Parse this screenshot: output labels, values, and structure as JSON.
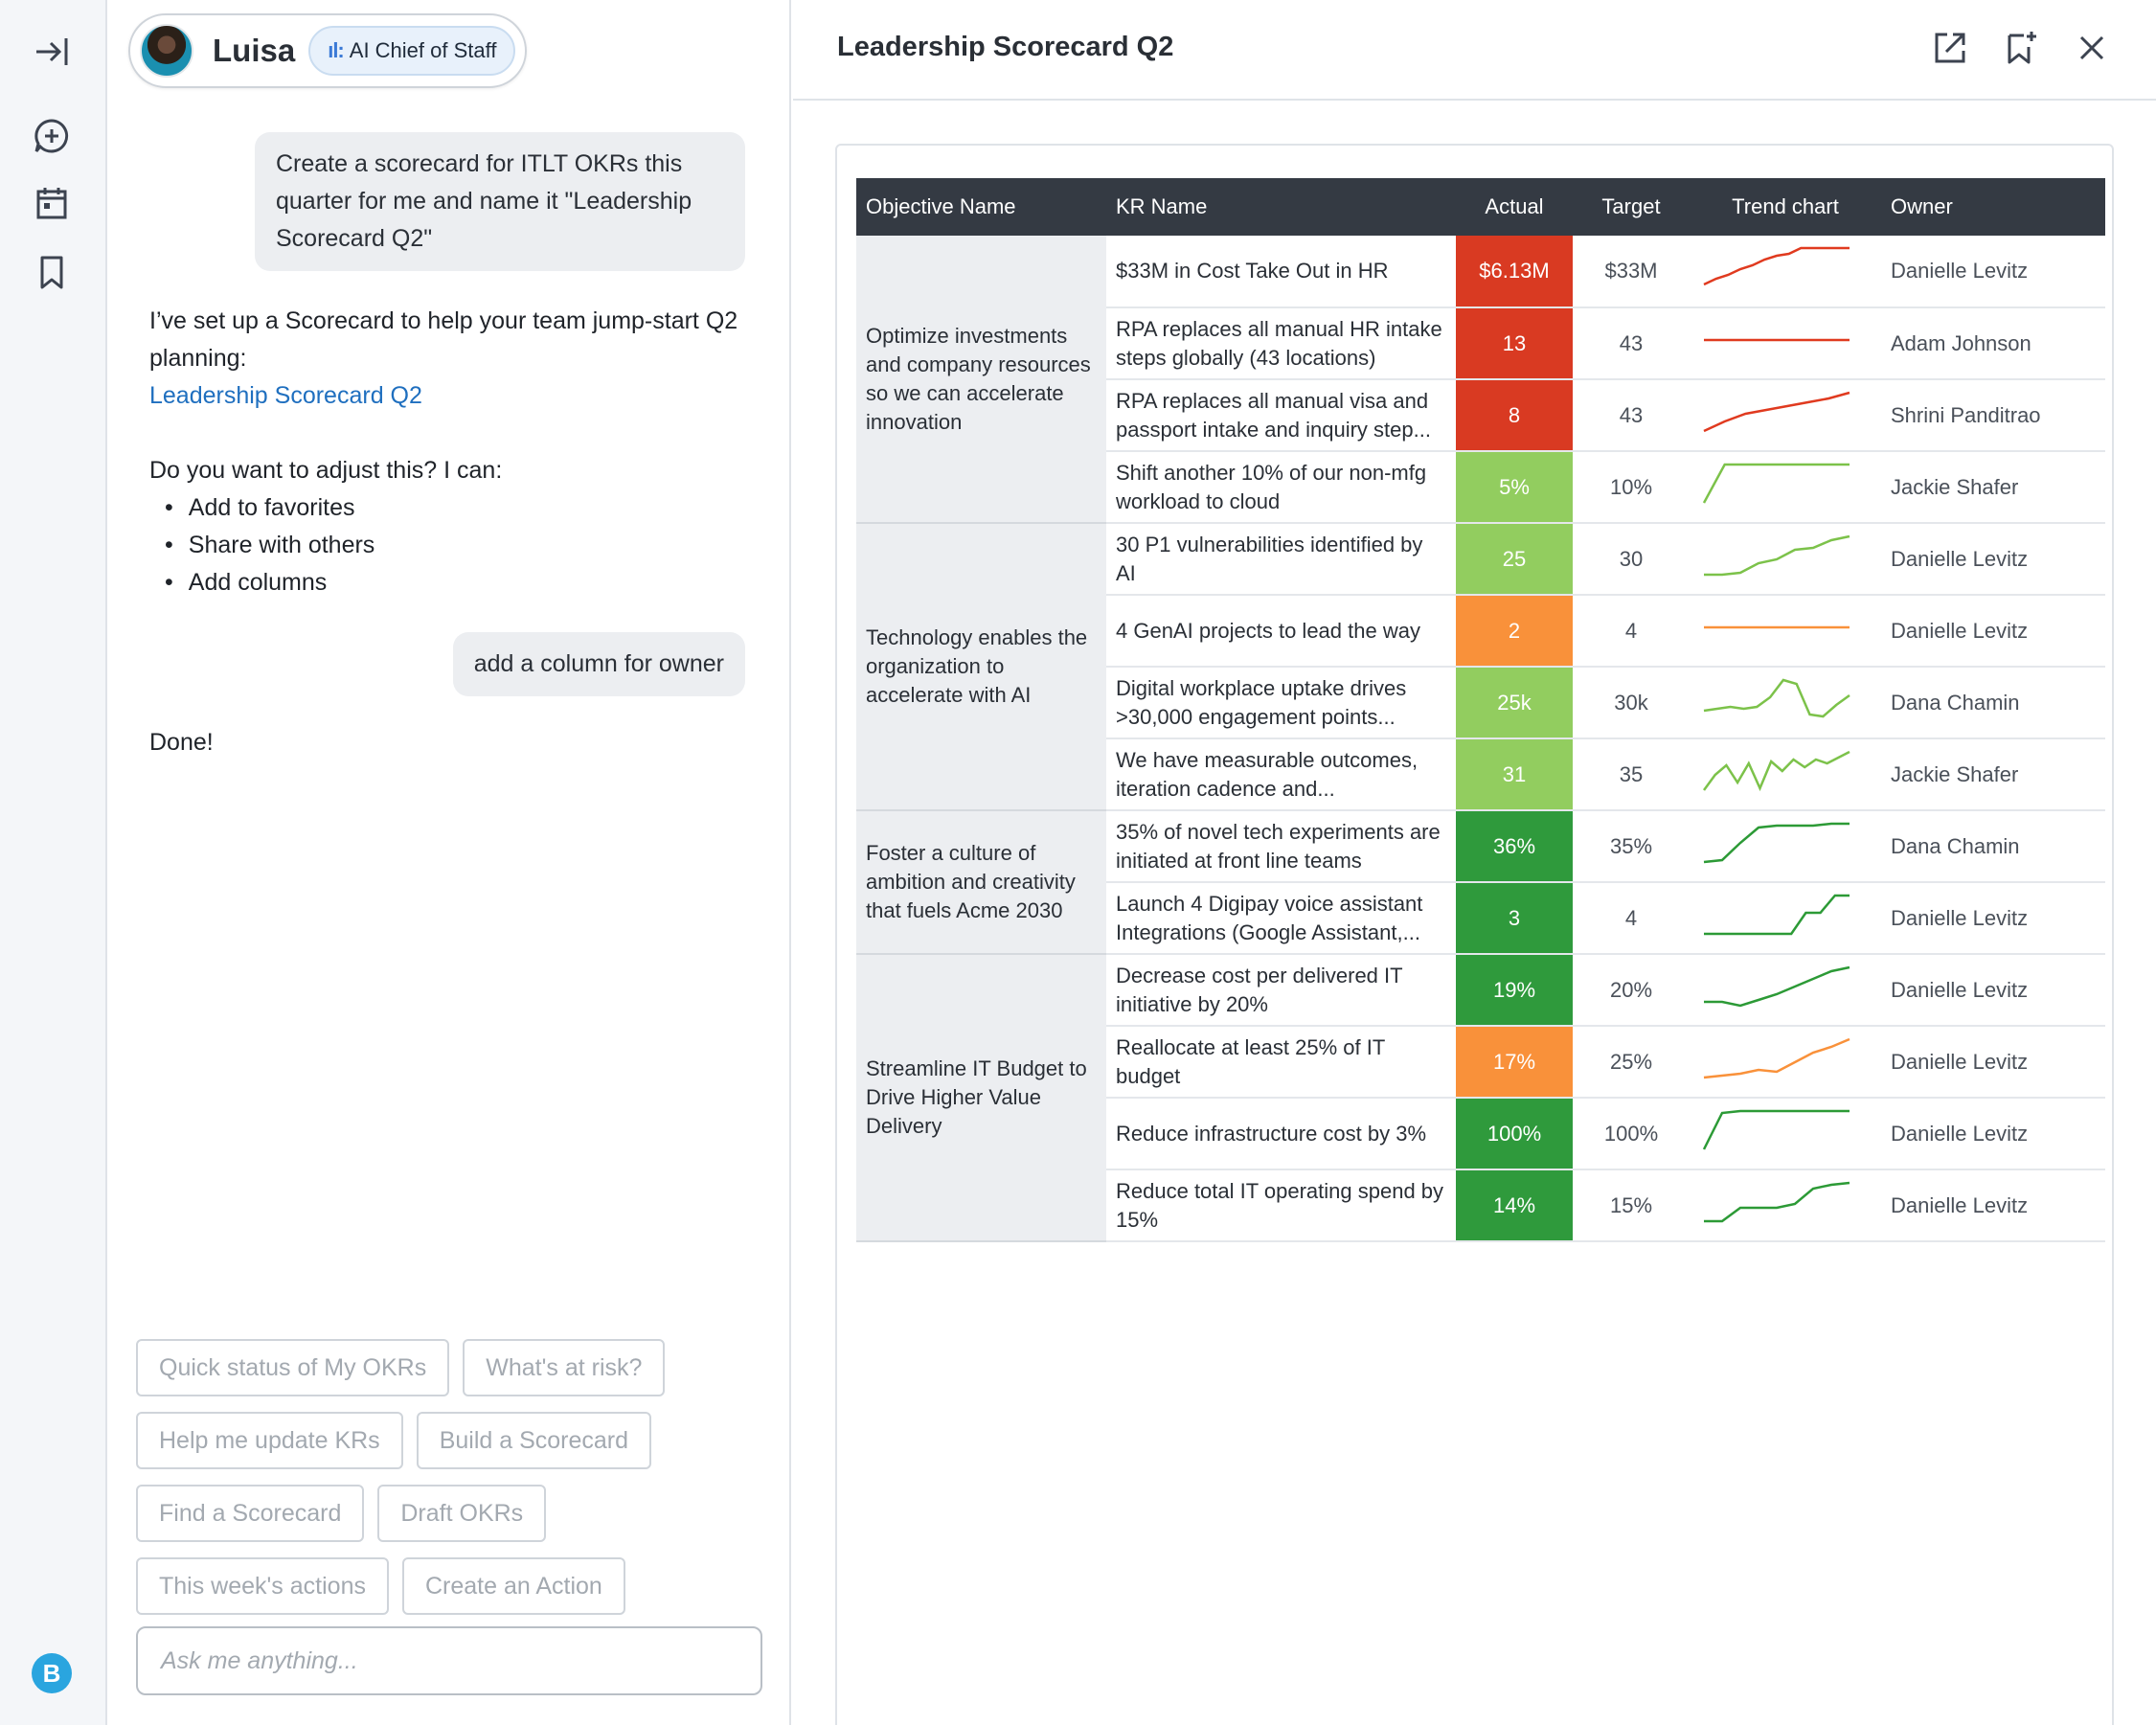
{
  "agent": {
    "name": "Luisa",
    "badge": "AI Chief of Staff"
  },
  "chat": {
    "user_msg_1": "Create a scorecard for ITLT OKRs this quarter for me and name it \"Leadership Scorecard Q2\"",
    "bot_msg_1_line1": "I’ve set up a Scorecard to help your team jump-start Q2 planning:",
    "bot_msg_1_link": "Leadership Scorecard Q2",
    "bot_msg_2_intro": "Do you want to adjust this? I can:",
    "bot_msg_2_items": [
      "Add to favorites",
      "Share with others",
      "Add columns"
    ],
    "user_msg_2": "add a column for owner",
    "bot_msg_3": "Done!"
  },
  "chips": [
    "Quick status of My OKRs",
    "What's at risk?",
    "Help me update KRs",
    "Build a Scorecard",
    "Find a Scorecard",
    "Draft OKRs",
    "This week's actions",
    "Create an Action"
  ],
  "ask": {
    "placeholder": "Ask me anything..."
  },
  "panel": {
    "title": "Leadership Scorecard Q2"
  },
  "colors": {
    "red": "#d93a22",
    "orange": "#f9913a",
    "light_green": "#92cd5f",
    "dark_green": "#2f9a3c",
    "header": "#343a43"
  },
  "table": {
    "headers": [
      "Objective Name",
      "KR Name",
      "Actual",
      "Target",
      "Trend chart",
      "Owner"
    ],
    "objectives": [
      {
        "name": "Optimize investments and company resources so we can accelerate innovation",
        "rows": 4
      },
      {
        "name": "Technology enables the organization to accelerate with AI",
        "rows": 4
      },
      {
        "name": "Foster a culture of ambition and creativity that fuels Acme 2030",
        "rows": 2
      },
      {
        "name": "Streamline IT Budget to Drive Higher Value Delivery",
        "rows": 4
      }
    ],
    "rows": [
      {
        "kr": "$33M in Cost Take Out in HR",
        "actual": "$6.13M",
        "target": "$33M",
        "status": "red",
        "owner": "Danielle Levitz",
        "trend": [
          0.05,
          0.2,
          0.3,
          0.45,
          0.55,
          0.7,
          0.8,
          0.85,
          1,
          1,
          1,
          1,
          1
        ]
      },
      {
        "kr": "RPA replaces all manual HR intake steps globally (43 locations)",
        "actual": "13",
        "target": "43",
        "status": "red",
        "owner": "Adam Johnson",
        "trend": [
          0.5,
          0.5,
          0.5,
          0.5,
          0.5,
          0.5,
          0.5,
          0.5
        ]
      },
      {
        "kr": "RPA replaces all manual visa and passport intake and inquiry step...",
        "actual": "8",
        "target": "43",
        "status": "red",
        "owner": "Shrini Panditrao",
        "trend": [
          0,
          0.25,
          0.45,
          0.55,
          0.65,
          0.75,
          0.85,
          1
        ]
      },
      {
        "kr": "Shift another 10% of our non-mfg workload to cloud",
        "actual": "5%",
        "target": "10%",
        "status": "light_green",
        "owner": "Jackie Shafer",
        "trend": [
          0,
          1,
          1,
          1,
          1,
          1,
          1,
          1
        ]
      },
      {
        "kr": "30 P1 vulnerabilities identified by AI",
        "actual": "25",
        "target": "30",
        "status": "light_green",
        "owner": "Danielle Levitz",
        "trend": [
          0,
          0,
          0.05,
          0.3,
          0.4,
          0.65,
          0.7,
          0.9,
          1
        ]
      },
      {
        "kr": "4 GenAI projects to lead the way",
        "actual": "2",
        "target": "4",
        "status": "orange",
        "owner": "Danielle Levitz",
        "trend": [
          0.5,
          0.5,
          0.5,
          0.5,
          0.5,
          0.5,
          0.5,
          0.5
        ]
      },
      {
        "kr": "Digital workplace uptake drives >30,000 engagement points...",
        "actual": "25k",
        "target": "30k",
        "status": "light_green",
        "owner": "Dana Chamin",
        "trend": [
          0.2,
          0.25,
          0.3,
          0.25,
          0.3,
          0.55,
          1,
          0.9,
          0.1,
          0.05,
          0.35,
          0.6
        ]
      },
      {
        "kr": "We have measurable outcomes, iteration cadence and...",
        "actual": "31",
        "target": "35",
        "status": "light_green",
        "owner": "Jackie Shafer",
        "trend": [
          0,
          0.4,
          0.65,
          0.2,
          0.7,
          0.05,
          0.75,
          0.5,
          0.8,
          0.6,
          0.8,
          0.7,
          0.85,
          1
        ]
      },
      {
        "kr": "35% of novel tech experiments are initiated at front line teams",
        "actual": "36%",
        "target": "35%",
        "status": "dark_green",
        "owner": "Dana Chamin",
        "trend": [
          0,
          0.05,
          0.5,
          0.9,
          0.95,
          0.95,
          0.95,
          1,
          1
        ]
      },
      {
        "kr": "Launch 4 Digipay voice assistant Integrations (Google Assistant,...",
        "actual": "3",
        "target": "4",
        "status": "dark_green",
        "owner": "Danielle Levitz",
        "trend": [
          0,
          0,
          0,
          0,
          0,
          0,
          0,
          0.55,
          0.55,
          1,
          1
        ]
      },
      {
        "kr": "Decrease cost per delivered IT initiative by 20%",
        "actual": "19%",
        "target": "20%",
        "status": "dark_green",
        "owner": "Danielle Levitz",
        "trend": [
          0.1,
          0.1,
          0,
          0.15,
          0.3,
          0.5,
          0.7,
          0.9,
          1
        ]
      },
      {
        "kr": "Reallocate at least 25% of IT budget",
        "actual": "17%",
        "target": "25%",
        "status": "orange",
        "owner": "Danielle Levitz",
        "trend": [
          0,
          0.05,
          0.1,
          0.2,
          0.15,
          0.4,
          0.65,
          0.8,
          1
        ]
      },
      {
        "kr": "Reduce infrastructure cost by 3%",
        "actual": "100%",
        "target": "100%",
        "status": "dark_green",
        "owner": "Danielle Levitz",
        "trend": [
          0,
          0.95,
          1,
          1,
          1,
          1,
          1,
          1,
          1
        ]
      },
      {
        "kr": "Reduce total IT operating spend by 15%",
        "actual": "14%",
        "target": "15%",
        "status": "dark_green",
        "owner": "Danielle Levitz",
        "trend": [
          0,
          0,
          0.35,
          0.35,
          0.35,
          0.45,
          0.85,
          0.95,
          1
        ]
      }
    ]
  }
}
